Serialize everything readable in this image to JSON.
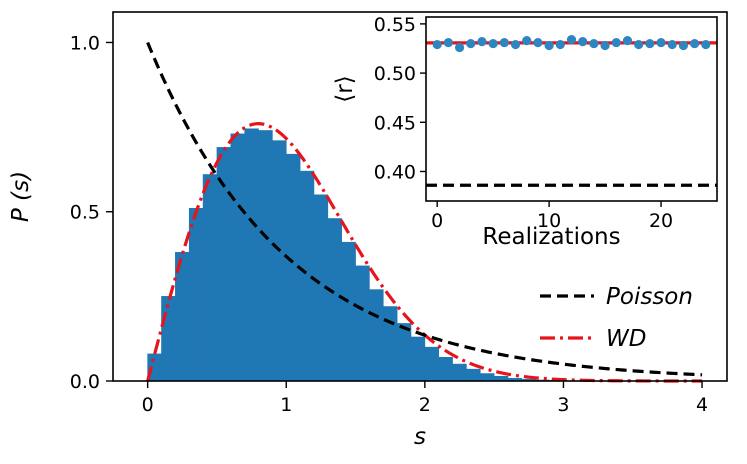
{
  "chart_data": [
    {
      "type": "bar",
      "role": "main",
      "xlabel": "s",
      "ylabel": "P (s)",
      "xlim": [
        -0.25,
        4.18
      ],
      "ylim": [
        0.0,
        1.09
      ],
      "xticks": [
        0,
        1,
        2,
        3,
        4
      ],
      "xtick_labels": [
        "0",
        "1",
        "2",
        "3",
        "4"
      ],
      "yticks": [
        0.0,
        0.5,
        1.0
      ],
      "ytick_labels": [
        "0.0",
        "0.5",
        "1.0"
      ],
      "grid": false,
      "legend": {
        "placement": "lower-right",
        "entries": [
          "Poisson",
          "WD"
        ]
      },
      "histogram": {
        "bin_width": 0.1,
        "bin_starts": [
          0.0,
          0.1,
          0.2,
          0.3,
          0.4,
          0.5,
          0.6,
          0.7,
          0.8,
          0.9,
          1.0,
          1.1,
          1.2,
          1.3,
          1.4,
          1.5,
          1.6,
          1.7,
          1.8,
          1.9,
          2.0,
          2.1,
          2.2,
          2.3,
          2.4,
          2.5,
          2.6,
          2.7,
          2.8,
          2.9,
          3.0
        ],
        "values": [
          0.08,
          0.25,
          0.38,
          0.51,
          0.61,
          0.69,
          0.73,
          0.745,
          0.74,
          0.71,
          0.67,
          0.62,
          0.55,
          0.48,
          0.41,
          0.34,
          0.27,
          0.22,
          0.17,
          0.13,
          0.1,
          0.07,
          0.05,
          0.035,
          0.022,
          0.014,
          0.008,
          0.005,
          0.003,
          0.002,
          0.001
        ],
        "color": "#1f77b4"
      },
      "series": [
        {
          "name": "Poisson",
          "function": "exp(-s)",
          "x_range": [
            0,
            4
          ],
          "color": "#000000",
          "style": "dashed"
        },
        {
          "name": "WD",
          "function": "(pi/2) s exp(-pi s^2 / 4)",
          "x_range": [
            0,
            4
          ],
          "color": "#e8141b",
          "style": "dash-dot"
        }
      ]
    },
    {
      "type": "scatter",
      "role": "inset",
      "xlabel": "Realizations",
      "ylabel": "⟨r⟩",
      "xlim": [
        -1,
        25
      ],
      "ylim": [
        0.37,
        0.557
      ],
      "xticks": [
        0,
        10,
        20
      ],
      "xtick_labels": [
        "0",
        "10",
        "20"
      ],
      "yticks": [
        0.4,
        0.45,
        0.5,
        0.55
      ],
      "ytick_labels": [
        "0.40",
        "0.45",
        "0.50",
        "0.55"
      ],
      "grid": false,
      "points": {
        "x": [
          0,
          1,
          2,
          3,
          4,
          5,
          6,
          7,
          8,
          9,
          10,
          11,
          12,
          13,
          14,
          15,
          16,
          17,
          18,
          19,
          20,
          21,
          22,
          23,
          24
        ],
        "y": [
          0.529,
          0.531,
          0.526,
          0.53,
          0.532,
          0.53,
          0.531,
          0.529,
          0.533,
          0.531,
          0.528,
          0.529,
          0.534,
          0.532,
          0.53,
          0.528,
          0.531,
          0.533,
          0.529,
          0.53,
          0.531,
          0.529,
          0.528,
          0.53,
          0.529
        ],
        "color": "#2e86c1"
      },
      "reference_lines": [
        {
          "value": 0.5307,
          "color": "#e8141b",
          "style": "solid"
        },
        {
          "value": 0.386,
          "color": "#000000",
          "style": "dashed"
        }
      ]
    }
  ]
}
